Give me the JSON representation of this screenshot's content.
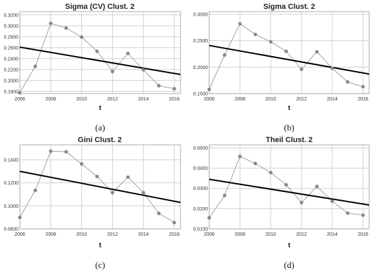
{
  "chart_data": [
    {
      "type": "line",
      "title": "Sigma (CV) Clust. 2",
      "xlabel": "t",
      "caption": "(a)",
      "x": [
        2006,
        2007,
        2008,
        2009,
        2010,
        2011,
        2012,
        2013,
        2014,
        2015,
        2016
      ],
      "values": [
        0.1775,
        0.226,
        0.3045,
        0.296,
        0.2795,
        0.2535,
        0.2165,
        0.2495,
        0.2195,
        0.1905,
        0.185
      ],
      "trend": [
        0.261,
        0.211
      ],
      "xlim": [
        2006,
        2016.4
      ],
      "ylim": [
        0.176,
        0.326
      ],
      "xticks": [
        "2006",
        "2008",
        "2010",
        "2012",
        "2014",
        "2016"
      ],
      "yticks": [
        "0.1800",
        "0.2000",
        "0.2200",
        "0.2400",
        "0.2600",
        "0.2800",
        "0.3000",
        "0.3200"
      ],
      "grid": true
    },
    {
      "type": "line",
      "title": "Sigma Clust. 2",
      "xlabel": "t",
      "caption": "(b)",
      "x": [
        2006,
        2007,
        2008,
        2009,
        2010,
        2011,
        2012,
        2013,
        2014,
        2015,
        2016
      ],
      "values": [
        0.158,
        0.223,
        0.282,
        0.262,
        0.248,
        0.23,
        0.196,
        0.229,
        0.198,
        0.172,
        0.163
      ],
      "trend": [
        0.241,
        0.187
      ],
      "xlim": [
        2006,
        2016.4
      ],
      "ylim": [
        0.15,
        0.305
      ],
      "xticks": [
        "2006",
        "2008",
        "2010",
        "2012",
        "2014",
        "2016"
      ],
      "yticks": [
        "0.1500",
        "0.2000",
        "0.2500",
        "0.3000"
      ],
      "grid": true
    },
    {
      "type": "line",
      "title": "Gini Clust. 2",
      "xlabel": "t",
      "caption": "(c)",
      "x": [
        2006,
        2007,
        2008,
        2009,
        2010,
        2011,
        2012,
        2013,
        2014,
        2015,
        2016
      ],
      "values": [
        0.09,
        0.1135,
        0.1475,
        0.147,
        0.1365,
        0.1255,
        0.1115,
        0.125,
        0.1115,
        0.0935,
        0.0855
      ],
      "trend": [
        0.13,
        0.103
      ],
      "xlim": [
        2006,
        2016.4
      ],
      "ylim": [
        0.08,
        0.153
      ],
      "xticks": [
        "2006",
        "2008",
        "2010",
        "2012",
        "2014",
        "2016"
      ],
      "yticks": [
        "0.0800",
        "0.1000",
        "0.1200",
        "0.1400"
      ],
      "grid": true
    },
    {
      "type": "line",
      "title": "Theil Clust. 2",
      "xlabel": "t",
      "caption": "(d)",
      "x": [
        2006,
        2007,
        2008,
        2009,
        2010,
        2011,
        2012,
        2013,
        2014,
        2015,
        2016
      ],
      "values": [
        0.0155,
        0.0265,
        0.0458,
        0.0423,
        0.0378,
        0.0318,
        0.023,
        0.031,
        0.0237,
        0.0178,
        0.0168
      ],
      "trend": [
        0.0345,
        0.0218
      ],
      "xlim": [
        2006,
        2016.4
      ],
      "ylim": [
        0.01,
        0.0515
      ],
      "xticks": [
        "2006",
        "2008",
        "2010",
        "2012",
        "2014",
        "2016"
      ],
      "yticks": [
        "0.0100",
        "0.0200",
        "0.0300",
        "0.0400",
        "0.0500"
      ],
      "grid": true
    }
  ]
}
